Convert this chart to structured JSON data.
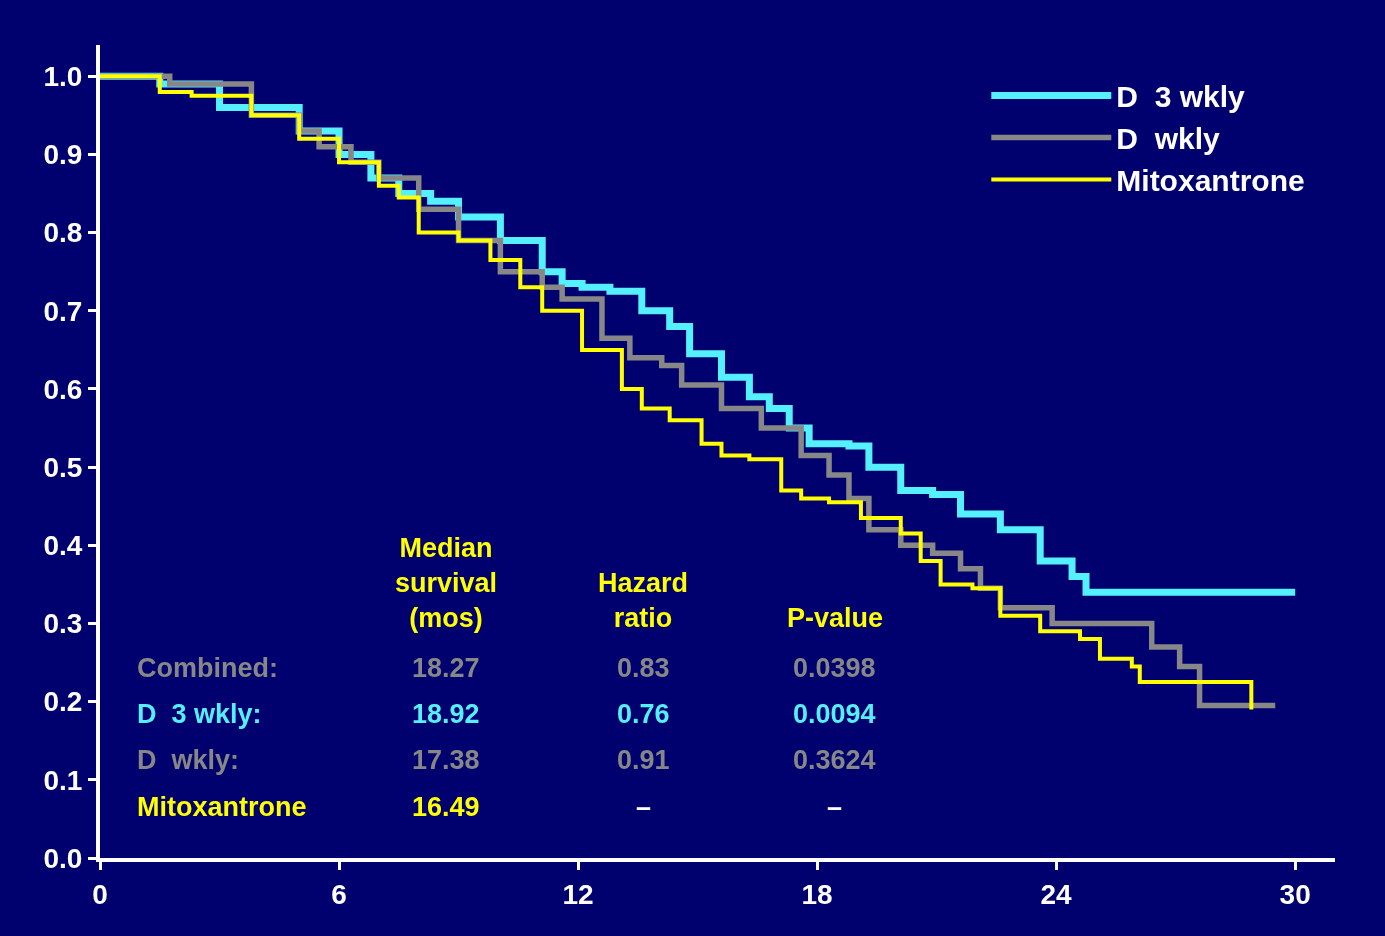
{
  "chart_data": {
    "type": "step",
    "xlim": [
      0,
      31
    ],
    "xticks": [
      0,
      6,
      12,
      18,
      24,
      30
    ],
    "ylim": [
      0,
      1.04
    ],
    "yticks": [
      {
        "value": 0,
        "label": "0.0"
      },
      {
        "value": 0.1,
        "label": "0.1"
      },
      {
        "value": 0.2,
        "label": "0.2"
      },
      {
        "value": 0.3,
        "label": "0.3"
      },
      {
        "value": 0.4,
        "label": "0.4"
      },
      {
        "value": 0.5,
        "label": "0.5"
      },
      {
        "value": 0.6,
        "label": "0.6"
      },
      {
        "value": 0.7,
        "label": "0.7"
      },
      {
        "value": 0.8,
        "label": "0.8"
      },
      {
        "value": 0.9,
        "label": "0.9"
      },
      {
        "value": 1,
        "label": "1.0"
      }
    ],
    "grid": false,
    "legend": "top right",
    "marker": "none",
    "line_style": "solid",
    "series": [
      {
        "name": "D  3 wkly",
        "color": "#55f0ff",
        "x": [
          0,
          1.5,
          3,
          5,
          6,
          6.8,
          7.5,
          8.3,
          9,
          10.05,
          11.1,
          11.6,
          12.1,
          12.8,
          13.6,
          14.3,
          14.8,
          15.6,
          16.3,
          16.8,
          17.3,
          17.8,
          18.8,
          19.3,
          20.1,
          20.9,
          21.6,
          22.6,
          23.6,
          24.4,
          24.75,
          30
        ],
        "values": [
          1,
          0.99,
          0.96,
          0.93,
          0.9,
          0.87,
          0.85,
          0.84,
          0.82,
          0.79,
          0.75,
          0.735,
          0.73,
          0.725,
          0.7,
          0.68,
          0.645,
          0.615,
          0.59,
          0.575,
          0.55,
          0.53,
          0.527,
          0.5,
          0.47,
          0.465,
          0.44,
          0.42,
          0.38,
          0.36,
          0.34,
          0.34
        ]
      },
      {
        "name": "D  wkly",
        "color": "#878787",
        "x": [
          0,
          1.75,
          3.8,
          5,
          5.5,
          6.3,
          7,
          8,
          9,
          10.05,
          11.1,
          11.6,
          12.6,
          13.3,
          14.1,
          14.6,
          15.6,
          16.6,
          17.6,
          18.3,
          18.8,
          19.3,
          20.1,
          20.9,
          21.6,
          22.1,
          22.6,
          23.9,
          26.1,
          26.4,
          27.1,
          27.6,
          29.5
        ],
        "values": [
          1,
          0.99,
          0.95,
          0.93,
          0.91,
          0.89,
          0.87,
          0.83,
          0.79,
          0.75,
          0.73,
          0.715,
          0.665,
          0.64,
          0.63,
          0.605,
          0.575,
          0.55,
          0.515,
          0.49,
          0.46,
          0.42,
          0.4,
          0.39,
          0.37,
          0.345,
          0.32,
          0.3,
          0.3,
          0.27,
          0.245,
          0.195,
          0.195
        ]
      },
      {
        "name": "Mitoxantrone",
        "color": "#ffff00",
        "x": [
          0,
          1,
          1.5,
          2.3,
          3.8,
          5,
          6,
          7,
          7.5,
          8,
          9,
          9.8,
          10.55,
          11.1,
          12.1,
          13.1,
          13.6,
          14.3,
          15.1,
          15.6,
          16.3,
          17.1,
          17.6,
          18.3,
          19.1,
          20.1,
          20.6,
          21.1,
          21.9,
          22.6,
          23.6,
          24.6,
          25.1,
          25.9,
          26.1,
          28.9,
          28.9
        ],
        "values": [
          1,
          1,
          0.98,
          0.975,
          0.95,
          0.92,
          0.89,
          0.86,
          0.845,
          0.8,
          0.79,
          0.765,
          0.73,
          0.7,
          0.65,
          0.6,
          0.575,
          0.56,
          0.53,
          0.515,
          0.51,
          0.47,
          0.46,
          0.455,
          0.435,
          0.415,
          0.38,
          0.35,
          0.345,
          0.31,
          0.29,
          0.28,
          0.255,
          0.245,
          0.225,
          0.225,
          0.19
        ]
      }
    ],
    "annotations": [
      "Median\nsurvival\n(mos)",
      "Hazard\nratio",
      "P-value",
      "Combined:",
      "18.27",
      "0.83",
      "0.0398",
      "D  3 wkly:",
      "18.92",
      "0.76",
      "0.0094",
      "D  wkly:",
      "17.38",
      "0.91",
      "0.3624",
      "Mitoxantrone",
      "16.49",
      "–",
      "–"
    ]
  }
}
